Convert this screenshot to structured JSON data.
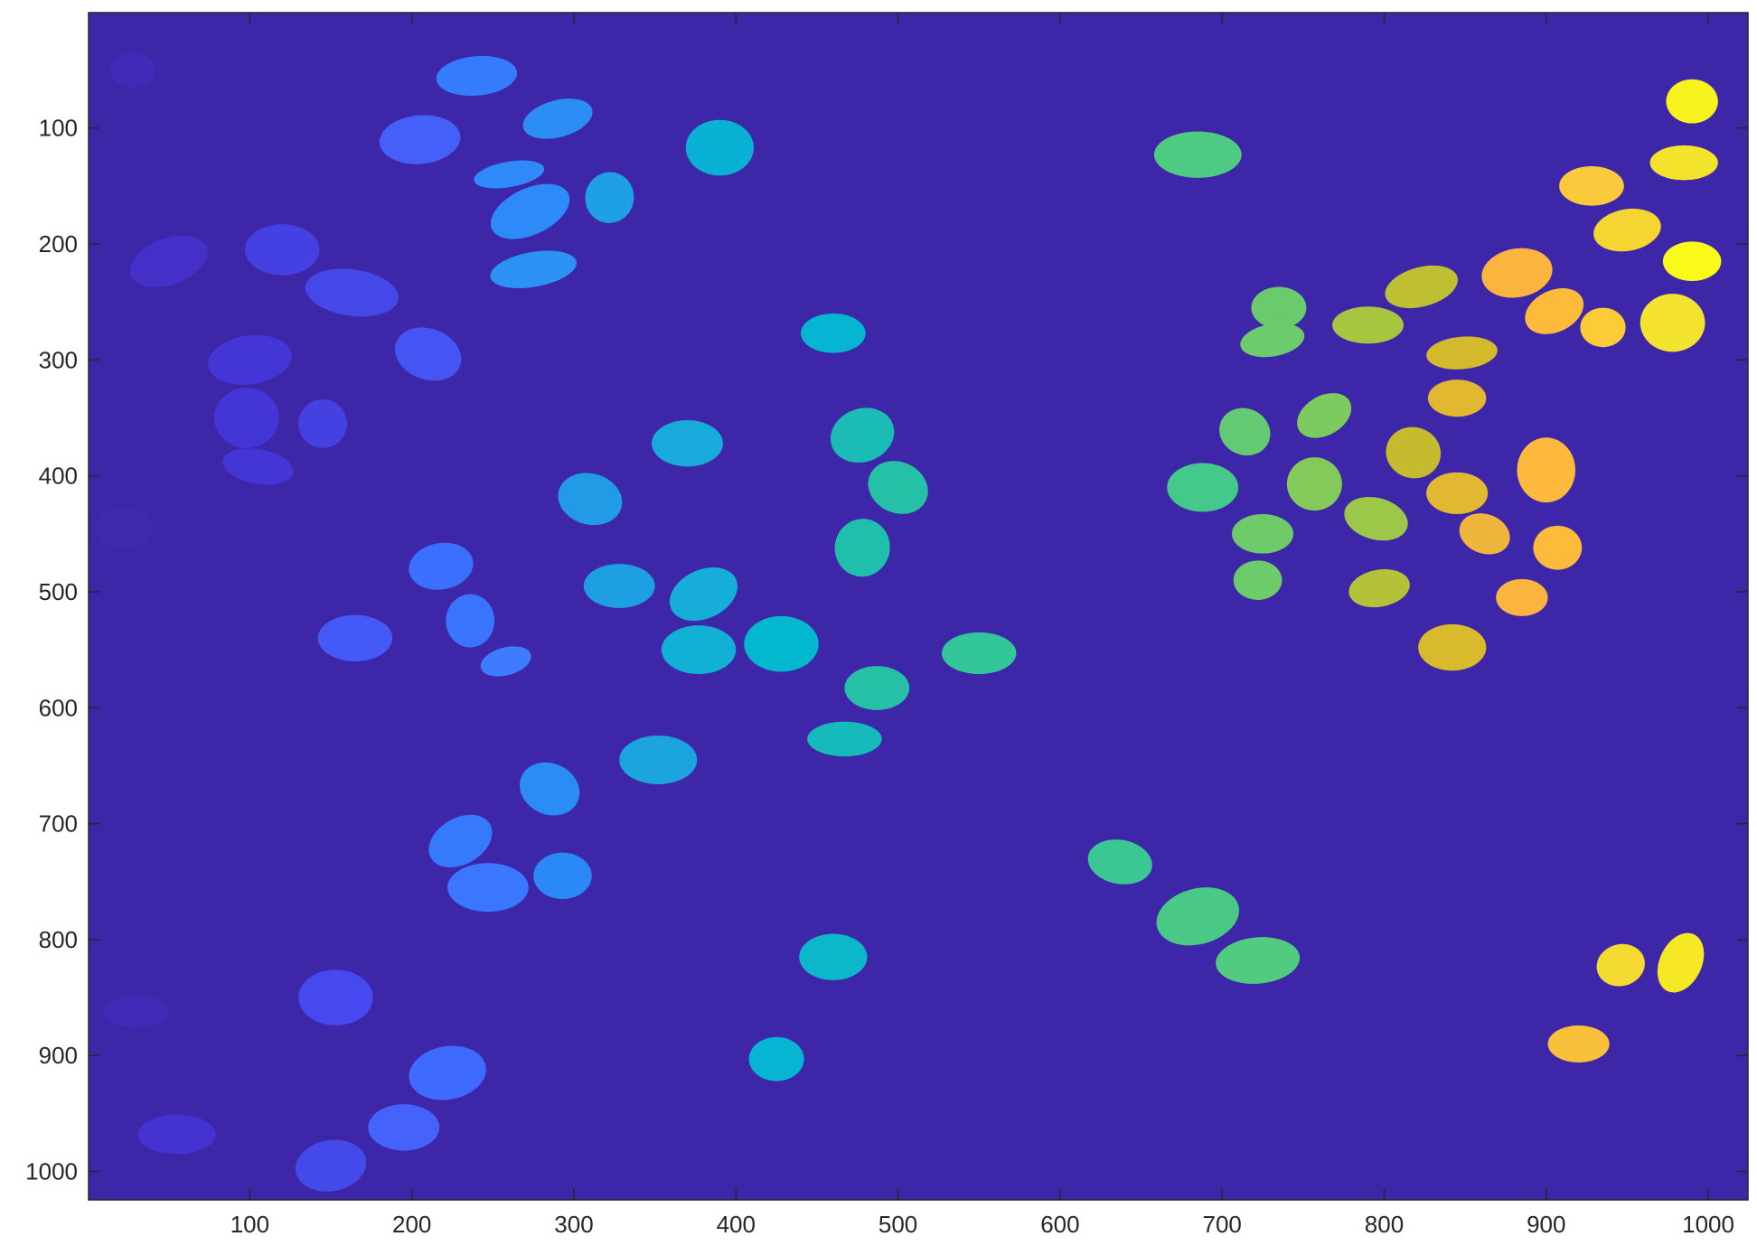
{
  "chart_data": {
    "type": "heatmap",
    "title": "",
    "xlabel": "",
    "ylabel": "",
    "xlim": [
      0.5,
      1024.5
    ],
    "ylim": [
      0.5,
      1024.5
    ],
    "y_direction": "reverse",
    "grid": false,
    "colormap": "parula",
    "background_color": "#3e26a8",
    "x_ticks": [
      100,
      200,
      300,
      400,
      500,
      600,
      700,
      800,
      900,
      1000
    ],
    "x_tick_labels": [
      "100",
      "200",
      "300",
      "400",
      "500",
      "600",
      "700",
      "800",
      "900",
      "1000"
    ],
    "y_ticks": [
      100,
      200,
      300,
      400,
      500,
      600,
      700,
      800,
      900,
      1000
    ],
    "y_tick_labels": [
      "100",
      "200",
      "300",
      "400",
      "500",
      "600",
      "700",
      "800",
      "900",
      "1000"
    ],
    "regions": [
      {
        "x": 28,
        "y": 50,
        "rx": 14,
        "ry": 15,
        "angle": 0,
        "color": "#4329b8"
      },
      {
        "x": 50,
        "y": 215,
        "rx": 25,
        "ry": 20,
        "angle": -20,
        "color": "#4430c8"
      },
      {
        "x": 22,
        "y": 445,
        "rx": 18,
        "ry": 18,
        "angle": 0,
        "color": "#3f29ad"
      },
      {
        "x": 30,
        "y": 862,
        "rx": 20,
        "ry": 14,
        "angle": 0,
        "color": "#4329b8"
      },
      {
        "x": 55,
        "y": 968,
        "rx": 24,
        "ry": 17,
        "angle": 0,
        "color": "#4433d0"
      },
      {
        "x": 100,
        "y": 300,
        "rx": 26,
        "ry": 21,
        "angle": -8,
        "color": "#4436d6"
      },
      {
        "x": 98,
        "y": 350,
        "rx": 20,
        "ry": 26,
        "angle": 0,
        "color": "#4436d6"
      },
      {
        "x": 105,
        "y": 392,
        "rx": 22,
        "ry": 15,
        "angle": 10,
        "color": "#4436d6"
      },
      {
        "x": 120,
        "y": 205,
        "rx": 23,
        "ry": 22,
        "angle": 0,
        "color": "#4440e2"
      },
      {
        "x": 145,
        "y": 355,
        "rx": 15,
        "ry": 21,
        "angle": 0,
        "color": "#4440e2"
      },
      {
        "x": 163,
        "y": 242,
        "rx": 29,
        "ry": 20,
        "angle": 8,
        "color": "#4448e8"
      },
      {
        "x": 153,
        "y": 850,
        "rx": 23,
        "ry": 24,
        "angle": 0,
        "color": "#4549ef"
      },
      {
        "x": 150,
        "y": 995,
        "rx": 22,
        "ry": 22,
        "angle": -10,
        "color": "#444ae9"
      },
      {
        "x": 210,
        "y": 295,
        "rx": 21,
        "ry": 22,
        "angle": 20,
        "color": "#4455f3"
      },
      {
        "x": 165,
        "y": 540,
        "rx": 23,
        "ry": 20,
        "angle": 0,
        "color": "#4459f5"
      },
      {
        "x": 205,
        "y": 110,
        "rx": 25,
        "ry": 21,
        "angle": -5,
        "color": "#4460f8"
      },
      {
        "x": 195,
        "y": 962,
        "rx": 22,
        "ry": 20,
        "angle": 0,
        "color": "#4563fa"
      },
      {
        "x": 222,
        "y": 915,
        "rx": 24,
        "ry": 23,
        "angle": -10,
        "color": "#3e6afd"
      },
      {
        "x": 218,
        "y": 478,
        "rx": 20,
        "ry": 20,
        "angle": -10,
        "color": "#3b6ffd"
      },
      {
        "x": 236,
        "y": 525,
        "rx": 15,
        "ry": 23,
        "angle": 0,
        "color": "#3974fe"
      },
      {
        "x": 258,
        "y": 560,
        "rx": 16,
        "ry": 12,
        "angle": -15,
        "color": "#3e7cfd"
      },
      {
        "x": 240,
        "y": 55,
        "rx": 25,
        "ry": 17,
        "angle": -5,
        "color": "#357cfc"
      },
      {
        "x": 260,
        "y": 140,
        "rx": 22,
        "ry": 11,
        "angle": -10,
        "color": "#2d8af8"
      },
      {
        "x": 273,
        "y": 172,
        "rx": 26,
        "ry": 20,
        "angle": -25,
        "color": "#2d8af8"
      },
      {
        "x": 290,
        "y": 92,
        "rx": 22,
        "ry": 16,
        "angle": -15,
        "color": "#2c8ef5"
      },
      {
        "x": 275,
        "y": 222,
        "rx": 27,
        "ry": 15,
        "angle": -10,
        "color": "#2b91f2"
      },
      {
        "x": 322,
        "y": 160,
        "rx": 15,
        "ry": 22,
        "angle": 10,
        "color": "#1f9fe5"
      },
      {
        "x": 230,
        "y": 715,
        "rx": 21,
        "ry": 20,
        "angle": -30,
        "color": "#3679fd"
      },
      {
        "x": 247,
        "y": 755,
        "rx": 25,
        "ry": 21,
        "angle": 0,
        "color": "#3a76fe"
      },
      {
        "x": 285,
        "y": 670,
        "rx": 19,
        "ry": 22,
        "angle": 25,
        "color": "#2b8cf5"
      },
      {
        "x": 293,
        "y": 745,
        "rx": 18,
        "ry": 20,
        "angle": 0,
        "color": "#2a89f6"
      },
      {
        "x": 310,
        "y": 420,
        "rx": 20,
        "ry": 22,
        "angle": 15,
        "color": "#229be7"
      },
      {
        "x": 328,
        "y": 495,
        "rx": 22,
        "ry": 19,
        "angle": 0,
        "color": "#1d9fe2"
      },
      {
        "x": 352,
        "y": 645,
        "rx": 24,
        "ry": 21,
        "angle": 0,
        "color": "#1ca4df"
      },
      {
        "x": 370,
        "y": 372,
        "rx": 22,
        "ry": 20,
        "angle": 0,
        "color": "#18aadb"
      },
      {
        "x": 380,
        "y": 502,
        "rx": 22,
        "ry": 21,
        "angle": -25,
        "color": "#16add9"
      },
      {
        "x": 377,
        "y": 550,
        "rx": 23,
        "ry": 21,
        "angle": 0,
        "color": "#13b0d6"
      },
      {
        "x": 428,
        "y": 545,
        "rx": 23,
        "ry": 24,
        "angle": 0,
        "color": "#02b8cf"
      },
      {
        "x": 425,
        "y": 903,
        "rx": 17,
        "ry": 19,
        "angle": 0,
        "color": "#05b5d1"
      },
      {
        "x": 390,
        "y": 117,
        "rx": 21,
        "ry": 24,
        "angle": 0,
        "color": "#09b1d4"
      },
      {
        "x": 460,
        "y": 277,
        "rx": 20,
        "ry": 17,
        "angle": 0,
        "color": "#06b5d2"
      },
      {
        "x": 460,
        "y": 815,
        "rx": 21,
        "ry": 20,
        "angle": 0,
        "color": "#0bb7c8"
      },
      {
        "x": 478,
        "y": 365,
        "rx": 20,
        "ry": 23,
        "angle": -20,
        "color": "#1bbcb5"
      },
      {
        "x": 467,
        "y": 627,
        "rx": 23,
        "ry": 15,
        "angle": 0,
        "color": "#15baba"
      },
      {
        "x": 478,
        "y": 462,
        "rx": 17,
        "ry": 25,
        "angle": 10,
        "color": "#1fbfab"
      },
      {
        "x": 487,
        "y": 583,
        "rx": 20,
        "ry": 19,
        "angle": 0,
        "color": "#25c0a6"
      },
      {
        "x": 500,
        "y": 410,
        "rx": 19,
        "ry": 22,
        "angle": 25,
        "color": "#25c1a6"
      },
      {
        "x": 550,
        "y": 553,
        "rx": 23,
        "ry": 18,
        "angle": 0,
        "color": "#33c69a"
      },
      {
        "x": 637,
        "y": 733,
        "rx": 20,
        "ry": 19,
        "angle": 10,
        "color": "#3ac794"
      },
      {
        "x": 688,
        "y": 410,
        "rx": 22,
        "ry": 21,
        "angle": 0,
        "color": "#45c98b"
      },
      {
        "x": 685,
        "y": 780,
        "rx": 26,
        "ry": 24,
        "angle": -15,
        "color": "#4ac986"
      },
      {
        "x": 685,
        "y": 123,
        "rx": 27,
        "ry": 20,
        "angle": 0,
        "color": "#4fca82"
      },
      {
        "x": 722,
        "y": 818,
        "rx": 26,
        "ry": 20,
        "angle": -5,
        "color": "#51cb80"
      },
      {
        "x": 735,
        "y": 255,
        "rx": 17,
        "ry": 18,
        "angle": 0,
        "color": "#6acb6e"
      },
      {
        "x": 731,
        "y": 283,
        "rx": 20,
        "ry": 14,
        "angle": -10,
        "color": "#6ccb6c"
      },
      {
        "x": 714,
        "y": 362,
        "rx": 16,
        "ry": 20,
        "angle": 25,
        "color": "#63ca72"
      },
      {
        "x": 725,
        "y": 450,
        "rx": 19,
        "ry": 17,
        "angle": 0,
        "color": "#6fcb69"
      },
      {
        "x": 722,
        "y": 490,
        "rx": 15,
        "ry": 17,
        "angle": 0,
        "color": "#6ccb6b"
      },
      {
        "x": 763,
        "y": 348,
        "rx": 18,
        "ry": 17,
        "angle": -30,
        "color": "#7dcb5f"
      },
      {
        "x": 757,
        "y": 407,
        "rx": 17,
        "ry": 23,
        "angle": 0,
        "color": "#84ca5a"
      },
      {
        "x": 795,
        "y": 437,
        "rx": 20,
        "ry": 18,
        "angle": 15,
        "color": "#9dc748"
      },
      {
        "x": 790,
        "y": 270,
        "rx": 22,
        "ry": 16,
        "angle": 0,
        "color": "#a8c541"
      },
      {
        "x": 797,
        "y": 497,
        "rx": 19,
        "ry": 16,
        "angle": -10,
        "color": "#b3c238"
      },
      {
        "x": 823,
        "y": 237,
        "rx": 23,
        "ry": 17,
        "angle": -15,
        "color": "#bebf31"
      },
      {
        "x": 818,
        "y": 380,
        "rx": 17,
        "ry": 22,
        "angle": 15,
        "color": "#c6bb2e"
      },
      {
        "x": 848,
        "y": 294,
        "rx": 22,
        "ry": 14,
        "angle": -5,
        "color": "#d3b92c"
      },
      {
        "x": 842,
        "y": 548,
        "rx": 21,
        "ry": 20,
        "angle": 0,
        "color": "#d9ba2c"
      },
      {
        "x": 845,
        "y": 333,
        "rx": 18,
        "ry": 16,
        "angle": 0,
        "color": "#e1b830"
      },
      {
        "x": 845,
        "y": 415,
        "rx": 19,
        "ry": 18,
        "angle": 0,
        "color": "#e2b832"
      },
      {
        "x": 862,
        "y": 450,
        "rx": 16,
        "ry": 17,
        "angle": 20,
        "color": "#f0b53c"
      },
      {
        "x": 882,
        "y": 225,
        "rx": 22,
        "ry": 21,
        "angle": -10,
        "color": "#fbb53e"
      },
      {
        "x": 900,
        "y": 395,
        "rx": 18,
        "ry": 28,
        "angle": 0,
        "color": "#fdb93e"
      },
      {
        "x": 905,
        "y": 258,
        "rx": 19,
        "ry": 18,
        "angle": -25,
        "color": "#fdbb3c"
      },
      {
        "x": 907,
        "y": 462,
        "rx": 15,
        "ry": 19,
        "angle": 0,
        "color": "#fdbb3c"
      },
      {
        "x": 885,
        "y": 505,
        "rx": 16,
        "ry": 16,
        "angle": 0,
        "color": "#fbb53e"
      },
      {
        "x": 920,
        "y": 890,
        "rx": 19,
        "ry": 16,
        "angle": 0,
        "color": "#f9c03a"
      },
      {
        "x": 928,
        "y": 150,
        "rx": 20,
        "ry": 17,
        "angle": 0,
        "color": "#fbc93c"
      },
      {
        "x": 935,
        "y": 272,
        "rx": 14,
        "ry": 17,
        "angle": 0,
        "color": "#fccc38"
      },
      {
        "x": 950,
        "y": 188,
        "rx": 21,
        "ry": 18,
        "angle": -10,
        "color": "#f4d532"
      },
      {
        "x": 946,
        "y": 822,
        "rx": 15,
        "ry": 18,
        "angle": -15,
        "color": "#f4d930"
      },
      {
        "x": 985,
        "y": 130,
        "rx": 21,
        "ry": 15,
        "angle": 0,
        "color": "#f4e32c"
      },
      {
        "x": 978,
        "y": 268,
        "rx": 20,
        "ry": 25,
        "angle": 0,
        "color": "#f3e22e"
      },
      {
        "x": 983,
        "y": 820,
        "rx": 13,
        "ry": 27,
        "angle": 25,
        "color": "#f7e825"
      },
      {
        "x": 990,
        "y": 77,
        "rx": 16,
        "ry": 19,
        "angle": 0,
        "color": "#f7f31e"
      },
      {
        "x": 990,
        "y": 215,
        "rx": 18,
        "ry": 17,
        "angle": 0,
        "color": "#f9f91a"
      }
    ]
  }
}
